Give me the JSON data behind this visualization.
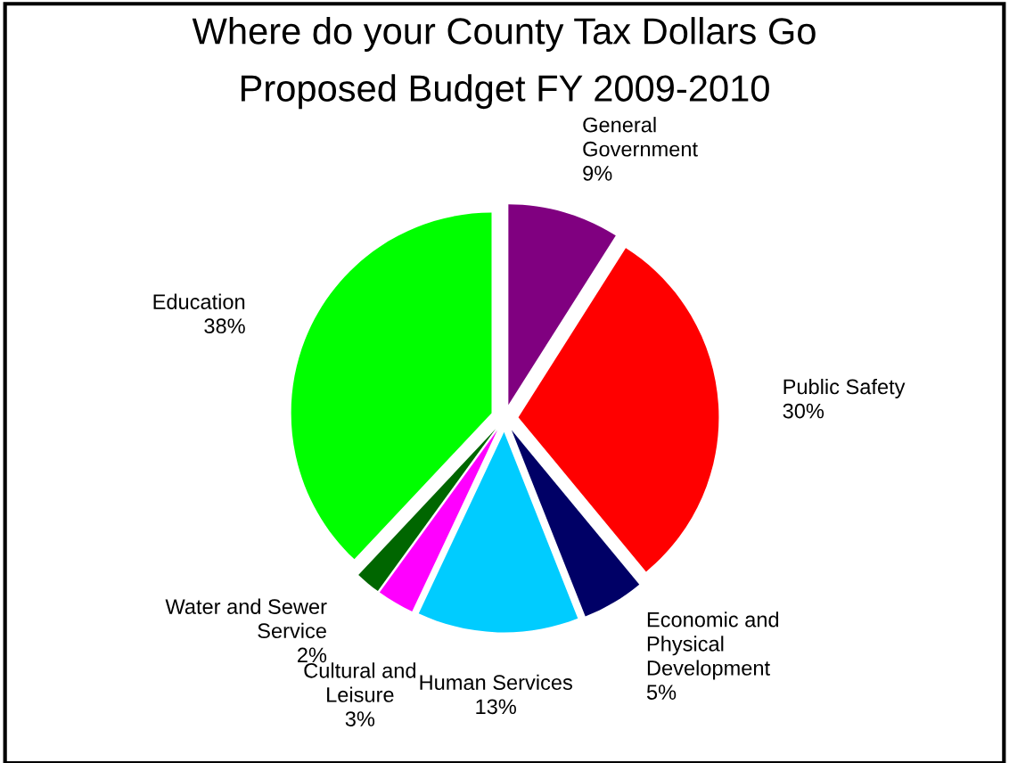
{
  "chart_data": {
    "type": "pie",
    "title": "Where do your County Tax Dollars Go",
    "subtitle": "Proposed Budget FY 2009-2010",
    "categories": [
      "General\nGovernment",
      "Public Safety",
      "Economic and\nPhysical\nDevelopment",
      "Human Services",
      "Cultural and\nLeisure",
      "Water and Sewer\nService",
      "Education"
    ],
    "values": [
      9,
      30,
      5,
      13,
      3,
      2,
      38
    ],
    "value_labels": [
      "9%",
      "30%",
      "5%",
      "13%",
      "3%",
      "2%",
      "38%"
    ],
    "colors": [
      "#800080",
      "#ff0000",
      "#000066",
      "#00ccff",
      "#ff00ff",
      "#006600",
      "#00ff00"
    ],
    "legend": false
  }
}
